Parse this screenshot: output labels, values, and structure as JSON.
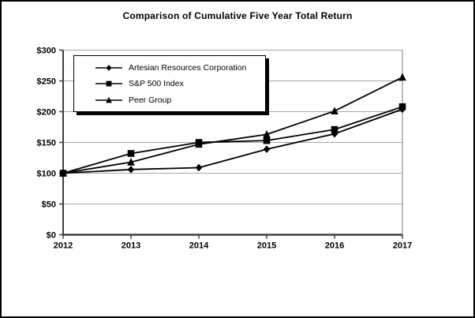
{
  "chart_data": {
    "type": "line",
    "title": "Comparison of Cumulative Five Year Total Return",
    "x_labels": [
      "2012",
      "2013",
      "2014",
      "2015",
      "2016",
      "2017"
    ],
    "xlabel": "",
    "ylabel": "",
    "ylim": [
      0,
      300
    ],
    "ytick_step": 50,
    "ytick_labels": [
      "$0",
      "$50",
      "$100",
      "$150",
      "$200",
      "$250",
      "$300"
    ],
    "grid": true,
    "legend_position": "top-left-inside",
    "series": [
      {
        "name": "Artesian Resources Corporation",
        "marker": "diamond",
        "color": "#000000",
        "values": [
          100,
          106,
          109,
          139,
          164,
          204
        ]
      },
      {
        "name": "S&P 500 Index",
        "marker": "square",
        "color": "#000000",
        "values": [
          100,
          132,
          150,
          153,
          171,
          208
        ]
      },
      {
        "name": "Peer Group",
        "marker": "triangle",
        "color": "#000000",
        "values": [
          100,
          118,
          147,
          163,
          201,
          256
        ]
      }
    ],
    "colors": {
      "line": "#000000",
      "grid": "#a6a6a6",
      "plot_border": "#a6a6a6",
      "axis": "#404040",
      "text": "#000000",
      "background": "#ffffff"
    }
  }
}
